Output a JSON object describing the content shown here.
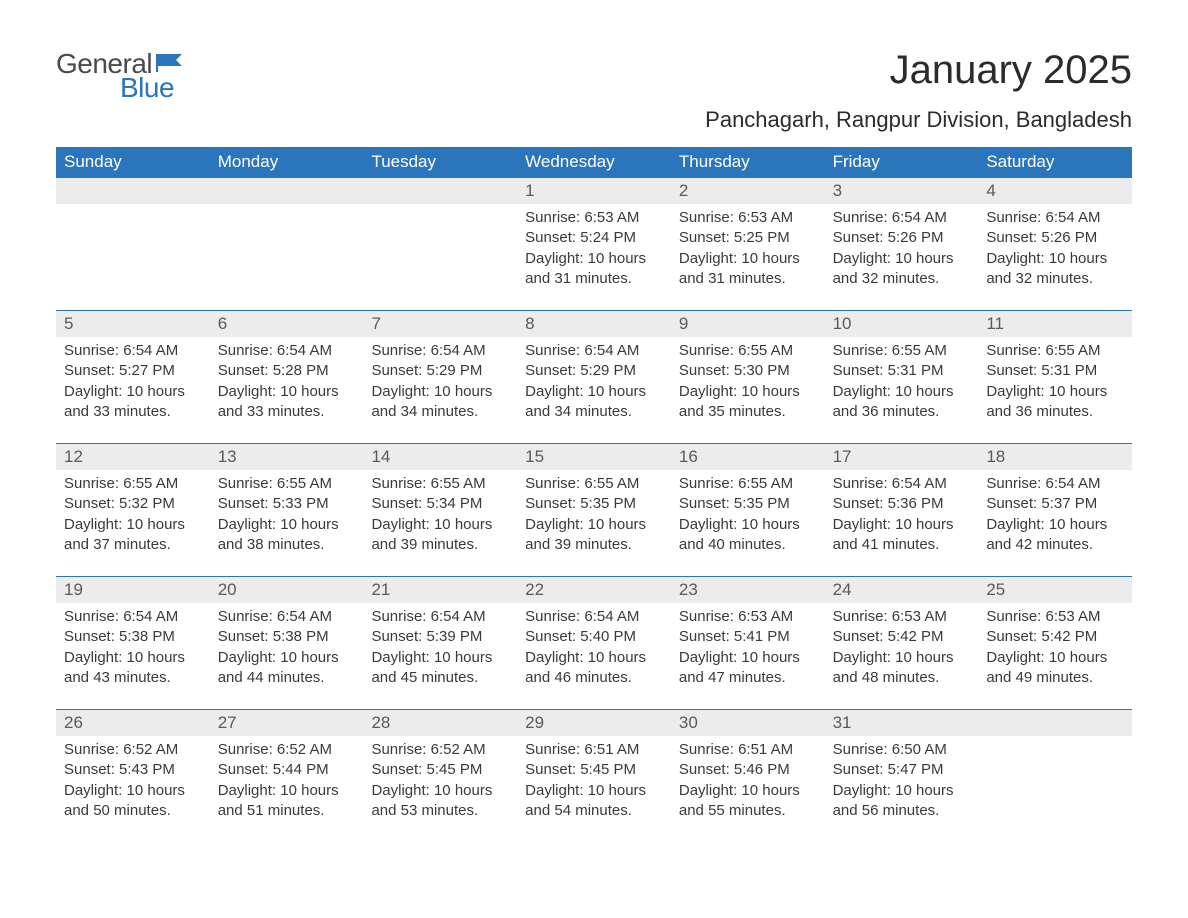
{
  "logo": {
    "text1": "General",
    "text2": "Blue"
  },
  "title": "January 2025",
  "location": "Panchagarh, Rangpur Division, Bangladesh",
  "colors": {
    "header_bg": "#2a75bb",
    "header_text": "#ffffff",
    "daynum_bg": "#ececec",
    "daynum_text": "#5a5a5a",
    "body_text": "#3a3a3a",
    "page_bg": "#ffffff",
    "logo_gray": "#4a4a4a",
    "logo_blue": "#2a75bb"
  },
  "weekdays": [
    "Sunday",
    "Monday",
    "Tuesday",
    "Wednesday",
    "Thursday",
    "Friday",
    "Saturday"
  ],
  "weeks": [
    [
      {
        "day": "",
        "sunrise": "",
        "sunset": "",
        "daylight": ""
      },
      {
        "day": "",
        "sunrise": "",
        "sunset": "",
        "daylight": ""
      },
      {
        "day": "",
        "sunrise": "",
        "sunset": "",
        "daylight": ""
      },
      {
        "day": "1",
        "sunrise": "Sunrise: 6:53 AM",
        "sunset": "Sunset: 5:24 PM",
        "daylight": "Daylight: 10 hours and 31 minutes."
      },
      {
        "day": "2",
        "sunrise": "Sunrise: 6:53 AM",
        "sunset": "Sunset: 5:25 PM",
        "daylight": "Daylight: 10 hours and 31 minutes."
      },
      {
        "day": "3",
        "sunrise": "Sunrise: 6:54 AM",
        "sunset": "Sunset: 5:26 PM",
        "daylight": "Daylight: 10 hours and 32 minutes."
      },
      {
        "day": "4",
        "sunrise": "Sunrise: 6:54 AM",
        "sunset": "Sunset: 5:26 PM",
        "daylight": "Daylight: 10 hours and 32 minutes."
      }
    ],
    [
      {
        "day": "5",
        "sunrise": "Sunrise: 6:54 AM",
        "sunset": "Sunset: 5:27 PM",
        "daylight": "Daylight: 10 hours and 33 minutes."
      },
      {
        "day": "6",
        "sunrise": "Sunrise: 6:54 AM",
        "sunset": "Sunset: 5:28 PM",
        "daylight": "Daylight: 10 hours and 33 minutes."
      },
      {
        "day": "7",
        "sunrise": "Sunrise: 6:54 AM",
        "sunset": "Sunset: 5:29 PM",
        "daylight": "Daylight: 10 hours and 34 minutes."
      },
      {
        "day": "8",
        "sunrise": "Sunrise: 6:54 AM",
        "sunset": "Sunset: 5:29 PM",
        "daylight": "Daylight: 10 hours and 34 minutes."
      },
      {
        "day": "9",
        "sunrise": "Sunrise: 6:55 AM",
        "sunset": "Sunset: 5:30 PM",
        "daylight": "Daylight: 10 hours and 35 minutes."
      },
      {
        "day": "10",
        "sunrise": "Sunrise: 6:55 AM",
        "sunset": "Sunset: 5:31 PM",
        "daylight": "Daylight: 10 hours and 36 minutes."
      },
      {
        "day": "11",
        "sunrise": "Sunrise: 6:55 AM",
        "sunset": "Sunset: 5:31 PM",
        "daylight": "Daylight: 10 hours and 36 minutes."
      }
    ],
    [
      {
        "day": "12",
        "sunrise": "Sunrise: 6:55 AM",
        "sunset": "Sunset: 5:32 PM",
        "daylight": "Daylight: 10 hours and 37 minutes."
      },
      {
        "day": "13",
        "sunrise": "Sunrise: 6:55 AM",
        "sunset": "Sunset: 5:33 PM",
        "daylight": "Daylight: 10 hours and 38 minutes."
      },
      {
        "day": "14",
        "sunrise": "Sunrise: 6:55 AM",
        "sunset": "Sunset: 5:34 PM",
        "daylight": "Daylight: 10 hours and 39 minutes."
      },
      {
        "day": "15",
        "sunrise": "Sunrise: 6:55 AM",
        "sunset": "Sunset: 5:35 PM",
        "daylight": "Daylight: 10 hours and 39 minutes."
      },
      {
        "day": "16",
        "sunrise": "Sunrise: 6:55 AM",
        "sunset": "Sunset: 5:35 PM",
        "daylight": "Daylight: 10 hours and 40 minutes."
      },
      {
        "day": "17",
        "sunrise": "Sunrise: 6:54 AM",
        "sunset": "Sunset: 5:36 PM",
        "daylight": "Daylight: 10 hours and 41 minutes."
      },
      {
        "day": "18",
        "sunrise": "Sunrise: 6:54 AM",
        "sunset": "Sunset: 5:37 PM",
        "daylight": "Daylight: 10 hours and 42 minutes."
      }
    ],
    [
      {
        "day": "19",
        "sunrise": "Sunrise: 6:54 AM",
        "sunset": "Sunset: 5:38 PM",
        "daylight": "Daylight: 10 hours and 43 minutes."
      },
      {
        "day": "20",
        "sunrise": "Sunrise: 6:54 AM",
        "sunset": "Sunset: 5:38 PM",
        "daylight": "Daylight: 10 hours and 44 minutes."
      },
      {
        "day": "21",
        "sunrise": "Sunrise: 6:54 AM",
        "sunset": "Sunset: 5:39 PM",
        "daylight": "Daylight: 10 hours and 45 minutes."
      },
      {
        "day": "22",
        "sunrise": "Sunrise: 6:54 AM",
        "sunset": "Sunset: 5:40 PM",
        "daylight": "Daylight: 10 hours and 46 minutes."
      },
      {
        "day": "23",
        "sunrise": "Sunrise: 6:53 AM",
        "sunset": "Sunset: 5:41 PM",
        "daylight": "Daylight: 10 hours and 47 minutes."
      },
      {
        "day": "24",
        "sunrise": "Sunrise: 6:53 AM",
        "sunset": "Sunset: 5:42 PM",
        "daylight": "Daylight: 10 hours and 48 minutes."
      },
      {
        "day": "25",
        "sunrise": "Sunrise: 6:53 AM",
        "sunset": "Sunset: 5:42 PM",
        "daylight": "Daylight: 10 hours and 49 minutes."
      }
    ],
    [
      {
        "day": "26",
        "sunrise": "Sunrise: 6:52 AM",
        "sunset": "Sunset: 5:43 PM",
        "daylight": "Daylight: 10 hours and 50 minutes."
      },
      {
        "day": "27",
        "sunrise": "Sunrise: 6:52 AM",
        "sunset": "Sunset: 5:44 PM",
        "daylight": "Daylight: 10 hours and 51 minutes."
      },
      {
        "day": "28",
        "sunrise": "Sunrise: 6:52 AM",
        "sunset": "Sunset: 5:45 PM",
        "daylight": "Daylight: 10 hours and 53 minutes."
      },
      {
        "day": "29",
        "sunrise": "Sunrise: 6:51 AM",
        "sunset": "Sunset: 5:45 PM",
        "daylight": "Daylight: 10 hours and 54 minutes."
      },
      {
        "day": "30",
        "sunrise": "Sunrise: 6:51 AM",
        "sunset": "Sunset: 5:46 PM",
        "daylight": "Daylight: 10 hours and 55 minutes."
      },
      {
        "day": "31",
        "sunrise": "Sunrise: 6:50 AM",
        "sunset": "Sunset: 5:47 PM",
        "daylight": "Daylight: 10 hours and 56 minutes."
      },
      {
        "day": "",
        "sunrise": "",
        "sunset": "",
        "daylight": ""
      }
    ]
  ]
}
